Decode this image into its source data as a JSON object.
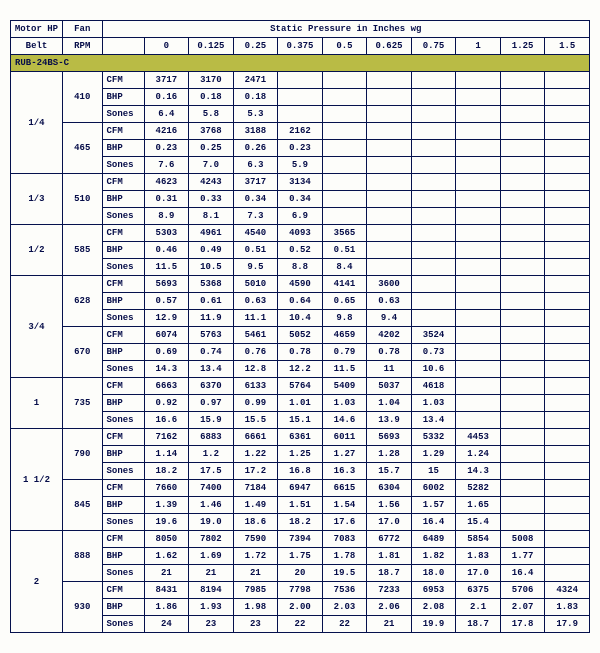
{
  "headers": {
    "motor_hp": "Motor HP",
    "belt": "Belt",
    "fan_rpm": "Fan",
    "rpm_sub": "RPM",
    "sp_title": "Static Pressure in Inches wg",
    "sp_cols": [
      "0",
      "0.125",
      "0.25",
      "0.375",
      "0.5",
      "0.625",
      "0.75",
      "1",
      "1.25",
      "1.5"
    ]
  },
  "model": "RUB-24BS-C",
  "metrics": [
    "CFM",
    "BHP",
    "Sones"
  ],
  "blocks": [
    {
      "hp": "1/4",
      "rpms": [
        {
          "rpm": "410",
          "rows": [
            [
              "3717",
              "3170",
              "2471",
              "",
              "",
              "",
              "",
              "",
              "",
              ""
            ],
            [
              "0.16",
              "0.18",
              "0.18",
              "",
              "",
              "",
              "",
              "",
              "",
              ""
            ],
            [
              "6.4",
              "5.8",
              "5.3",
              "",
              "",
              "",
              "",
              "",
              "",
              ""
            ]
          ]
        },
        {
          "rpm": "465",
          "rows": [
            [
              "4216",
              "3768",
              "3188",
              "2162",
              "",
              "",
              "",
              "",
              "",
              ""
            ],
            [
              "0.23",
              "0.25",
              "0.26",
              "0.23",
              "",
              "",
              "",
              "",
              "",
              ""
            ],
            [
              "7.6",
              "7.0",
              "6.3",
              "5.9",
              "",
              "",
              "",
              "",
              "",
              ""
            ]
          ]
        }
      ]
    },
    {
      "hp": "1/3",
      "rpms": [
        {
          "rpm": "510",
          "rows": [
            [
              "4623",
              "4243",
              "3717",
              "3134",
              "",
              "",
              "",
              "",
              "",
              ""
            ],
            [
              "0.31",
              "0.33",
              "0.34",
              "0.34",
              "",
              "",
              "",
              "",
              "",
              ""
            ],
            [
              "8.9",
              "8.1",
              "7.3",
              "6.9",
              "",
              "",
              "",
              "",
              "",
              ""
            ]
          ]
        }
      ]
    },
    {
      "hp": "1/2",
      "rpms": [
        {
          "rpm": "585",
          "rows": [
            [
              "5303",
              "4961",
              "4540",
              "4093",
              "3565",
              "",
              "",
              "",
              "",
              ""
            ],
            [
              "0.46",
              "0.49",
              "0.51",
              "0.52",
              "0.51",
              "",
              "",
              "",
              "",
              ""
            ],
            [
              "11.5",
              "10.5",
              "9.5",
              "8.8",
              "8.4",
              "",
              "",
              "",
              "",
              ""
            ]
          ]
        }
      ]
    },
    {
      "hp": "3/4",
      "rpms": [
        {
          "rpm": "628",
          "rows": [
            [
              "5693",
              "5368",
              "5010",
              "4590",
              "4141",
              "3600",
              "",
              "",
              "",
              ""
            ],
            [
              "0.57",
              "0.61",
              "0.63",
              "0.64",
              "0.65",
              "0.63",
              "",
              "",
              "",
              ""
            ],
            [
              "12.9",
              "11.9",
              "11.1",
              "10.4",
              "9.8",
              "9.4",
              "",
              "",
              "",
              ""
            ]
          ]
        },
        {
          "rpm": "670",
          "rows": [
            [
              "6074",
              "5763",
              "5461",
              "5052",
              "4659",
              "4202",
              "3524",
              "",
              "",
              ""
            ],
            [
              "0.69",
              "0.74",
              "0.76",
              "0.78",
              "0.79",
              "0.78",
              "0.73",
              "",
              "",
              ""
            ],
            [
              "14.3",
              "13.4",
              "12.8",
              "12.2",
              "11.5",
              "11",
              "10.6",
              "",
              "",
              ""
            ]
          ]
        }
      ]
    },
    {
      "hp": "1",
      "rpms": [
        {
          "rpm": "735",
          "rows": [
            [
              "6663",
              "6370",
              "6133",
              "5764",
              "5409",
              "5037",
              "4618",
              "",
              "",
              ""
            ],
            [
              "0.92",
              "0.97",
              "0.99",
              "1.01",
              "1.03",
              "1.04",
              "1.03",
              "",
              "",
              ""
            ],
            [
              "16.6",
              "15.9",
              "15.5",
              "15.1",
              "14.6",
              "13.9",
              "13.4",
              "",
              "",
              ""
            ]
          ]
        }
      ]
    },
    {
      "hp": "1 1/2",
      "rpms": [
        {
          "rpm": "790",
          "rows": [
            [
              "7162",
              "6883",
              "6661",
              "6361",
              "6011",
              "5693",
              "5332",
              "4453",
              "",
              ""
            ],
            [
              "1.14",
              "1.2",
              "1.22",
              "1.25",
              "1.27",
              "1.28",
              "1.29",
              "1.24",
              "",
              ""
            ],
            [
              "18.2",
              "17.5",
              "17.2",
              "16.8",
              "16.3",
              "15.7",
              "15",
              "14.3",
              "",
              ""
            ]
          ]
        },
        {
          "rpm": "845",
          "rows": [
            [
              "7660",
              "7400",
              "7184",
              "6947",
              "6615",
              "6304",
              "6002",
              "5282",
              "",
              ""
            ],
            [
              "1.39",
              "1.46",
              "1.49",
              "1.51",
              "1.54",
              "1.56",
              "1.57",
              "1.65",
              "",
              ""
            ],
            [
              "19.6",
              "19.0",
              "18.6",
              "18.2",
              "17.6",
              "17.0",
              "16.4",
              "15.4",
              "",
              ""
            ]
          ]
        }
      ]
    },
    {
      "hp": "2",
      "rpms": [
        {
          "rpm": "888",
          "rows": [
            [
              "8050",
              "7802",
              "7590",
              "7394",
              "7083",
              "6772",
              "6489",
              "5854",
              "5008",
              ""
            ],
            [
              "1.62",
              "1.69",
              "1.72",
              "1.75",
              "1.78",
              "1.81",
              "1.82",
              "1.83",
              "1.77",
              ""
            ],
            [
              "21",
              "21",
              "21",
              "20",
              "19.5",
              "18.7",
              "18.0",
              "17.0",
              "16.4",
              ""
            ]
          ]
        },
        {
          "rpm": "930",
          "rows": [
            [
              "8431",
              "8194",
              "7985",
              "7798",
              "7536",
              "7233",
              "6953",
              "6375",
              "5706",
              "4324"
            ],
            [
              "1.86",
              "1.93",
              "1.98",
              "2.00",
              "2.03",
              "2.06",
              "2.08",
              "2.1",
              "2.07",
              "1.83"
            ],
            [
              "24",
              "23",
              "23",
              "22",
              "22",
              "21",
              "19.9",
              "18.7",
              "17.8",
              "17.9"
            ]
          ]
        }
      ]
    }
  ],
  "colors": {
    "border": "#05114d",
    "model_bg": "#b9bb45",
    "text": "#060d49"
  }
}
